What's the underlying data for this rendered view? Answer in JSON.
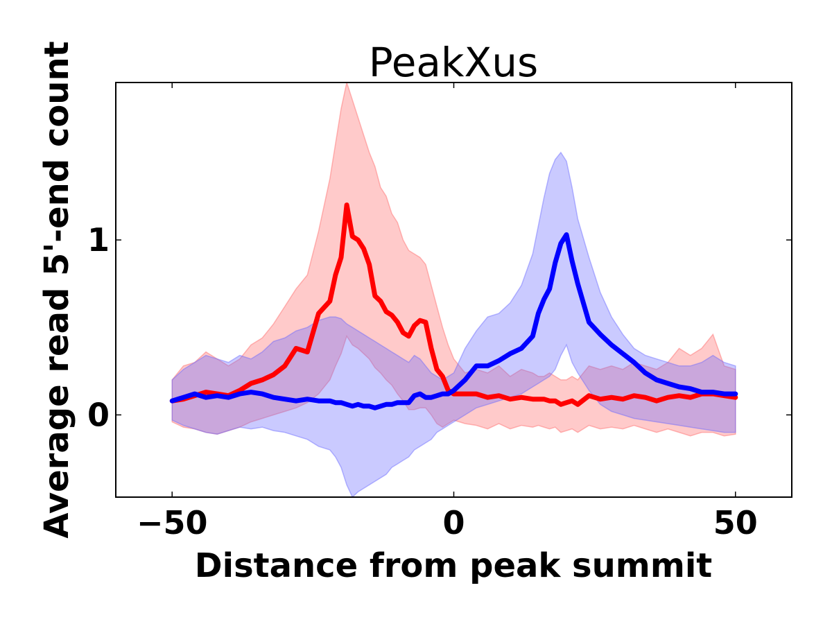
{
  "chart_data": {
    "type": "line",
    "title": "PeakXus",
    "xlabel": "Distance from peak summit",
    "ylabel": "Average read 5'-end count",
    "xlim": [
      -60,
      60
    ],
    "ylim": [
      -0.47,
      1.9
    ],
    "xticks": [
      -50,
      0,
      50
    ],
    "xtick_labels": [
      "−50",
      "0",
      "50"
    ],
    "yticks": [
      0,
      1
    ],
    "ytick_labels": [
      "0",
      "1"
    ],
    "grid": false,
    "legend": "none",
    "x": [
      -50,
      -48,
      -46,
      -44,
      -42,
      -40,
      -38,
      -36,
      -34,
      -32,
      -30,
      -28,
      -26,
      -24,
      -22,
      -21,
      -20,
      -19,
      -18,
      -17,
      -16,
      -15,
      -14,
      -13,
      -12,
      -11,
      -10,
      -9,
      -8,
      -7,
      -6,
      -5,
      -4,
      -3,
      -2,
      -1,
      0,
      2,
      4,
      6,
      8,
      10,
      12,
      14,
      15,
      16,
      17,
      18,
      19,
      20,
      21,
      22,
      24,
      26,
      28,
      30,
      32,
      34,
      36,
      38,
      40,
      42,
      44,
      46,
      48,
      50
    ],
    "series": [
      {
        "color": "#ff0000",
        "band_color": "#ff6666",
        "mean": [
          0.08,
          0.09,
          0.11,
          0.13,
          0.12,
          0.11,
          0.14,
          0.18,
          0.2,
          0.23,
          0.28,
          0.38,
          0.36,
          0.58,
          0.65,
          0.8,
          0.9,
          1.2,
          1.02,
          1.0,
          0.95,
          0.86,
          0.68,
          0.65,
          0.59,
          0.57,
          0.53,
          0.47,
          0.45,
          0.51,
          0.54,
          0.53,
          0.38,
          0.26,
          0.22,
          0.14,
          0.12,
          0.12,
          0.12,
          0.1,
          0.11,
          0.09,
          0.1,
          0.09,
          0.09,
          0.09,
          0.08,
          0.08,
          0.06,
          0.07,
          0.08,
          0.06,
          0.11,
          0.09,
          0.1,
          0.09,
          0.11,
          0.1,
          0.08,
          0.1,
          0.11,
          0.1,
          0.12,
          0.12,
          0.11,
          0.1
        ],
        "upper": [
          0.2,
          0.28,
          0.3,
          0.36,
          0.32,
          0.28,
          0.32,
          0.4,
          0.44,
          0.52,
          0.62,
          0.72,
          0.8,
          1.05,
          1.35,
          1.55,
          1.75,
          1.9,
          1.8,
          1.7,
          1.6,
          1.5,
          1.42,
          1.3,
          1.25,
          1.15,
          1.1,
          1.0,
          0.94,
          0.92,
          0.9,
          0.86,
          0.74,
          0.62,
          0.5,
          0.4,
          0.32,
          0.24,
          0.26,
          0.24,
          0.28,
          0.22,
          0.26,
          0.24,
          0.22,
          0.22,
          0.24,
          0.22,
          0.2,
          0.2,
          0.22,
          0.2,
          0.28,
          0.26,
          0.28,
          0.26,
          0.3,
          0.28,
          0.26,
          0.3,
          0.38,
          0.34,
          0.38,
          0.46,
          0.28,
          0.26
        ],
        "lower": [
          -0.04,
          -0.07,
          -0.08,
          -0.1,
          -0.11,
          -0.09,
          -0.07,
          -0.04,
          -0.02,
          0.0,
          0.02,
          0.04,
          0.07,
          0.12,
          0.2,
          0.28,
          0.35,
          0.45,
          0.4,
          0.38,
          0.35,
          0.32,
          0.27,
          0.24,
          0.2,
          0.17,
          0.12,
          0.08,
          0.03,
          0.03,
          0.04,
          0.04,
          0.0,
          -0.05,
          -0.07,
          -0.05,
          -0.03,
          -0.05,
          -0.06,
          -0.08,
          -0.05,
          -0.08,
          -0.06,
          -0.07,
          -0.06,
          -0.07,
          -0.08,
          -0.07,
          -0.1,
          -0.09,
          -0.08,
          -0.1,
          -0.06,
          -0.08,
          -0.07,
          -0.08,
          -0.06,
          -0.08,
          -0.1,
          -0.08,
          -0.1,
          -0.12,
          -0.1,
          -0.1,
          -0.12,
          -0.11
        ]
      },
      {
        "color": "#0000ff",
        "band_color": "#6666ff",
        "mean": [
          0.08,
          0.1,
          0.12,
          0.1,
          0.11,
          0.1,
          0.12,
          0.13,
          0.12,
          0.1,
          0.09,
          0.08,
          0.09,
          0.08,
          0.08,
          0.07,
          0.07,
          0.06,
          0.05,
          0.06,
          0.05,
          0.05,
          0.04,
          0.05,
          0.06,
          0.06,
          0.07,
          0.07,
          0.07,
          0.11,
          0.12,
          0.1,
          0.1,
          0.11,
          0.12,
          0.12,
          0.14,
          0.2,
          0.28,
          0.28,
          0.31,
          0.35,
          0.38,
          0.45,
          0.58,
          0.66,
          0.72,
          0.87,
          0.98,
          1.03,
          0.88,
          0.75,
          0.53,
          0.46,
          0.4,
          0.35,
          0.3,
          0.24,
          0.2,
          0.18,
          0.16,
          0.15,
          0.13,
          0.13,
          0.12,
          0.12
        ],
        "upper": [
          0.2,
          0.26,
          0.3,
          0.34,
          0.32,
          0.3,
          0.34,
          0.32,
          0.36,
          0.42,
          0.44,
          0.48,
          0.5,
          0.54,
          0.56,
          0.56,
          0.55,
          0.52,
          0.5,
          0.48,
          0.46,
          0.44,
          0.42,
          0.4,
          0.38,
          0.36,
          0.34,
          0.32,
          0.3,
          0.34,
          0.32,
          0.28,
          0.24,
          0.22,
          0.2,
          0.22,
          0.24,
          0.38,
          0.48,
          0.56,
          0.58,
          0.64,
          0.74,
          0.92,
          1.08,
          1.24,
          1.38,
          1.46,
          1.5,
          1.45,
          1.3,
          1.12,
          0.9,
          0.7,
          0.56,
          0.46,
          0.38,
          0.34,
          0.32,
          0.3,
          0.28,
          0.28,
          0.3,
          0.34,
          0.3,
          0.28
        ],
        "lower": [
          -0.03,
          -0.06,
          -0.08,
          -0.1,
          -0.11,
          -0.09,
          -0.07,
          -0.08,
          -0.07,
          -0.09,
          -0.1,
          -0.12,
          -0.14,
          -0.18,
          -0.2,
          -0.24,
          -0.3,
          -0.4,
          -0.47,
          -0.44,
          -0.42,
          -0.4,
          -0.38,
          -0.36,
          -0.34,
          -0.3,
          -0.28,
          -0.26,
          -0.24,
          -0.2,
          -0.18,
          -0.16,
          -0.14,
          -0.1,
          -0.08,
          -0.06,
          -0.04,
          0.0,
          0.04,
          0.06,
          0.08,
          0.1,
          0.12,
          0.16,
          0.18,
          0.2,
          0.22,
          0.26,
          0.34,
          0.4,
          0.3,
          0.24,
          0.14,
          0.06,
          0.02,
          0.0,
          -0.02,
          -0.03,
          -0.04,
          -0.05,
          -0.06,
          -0.07,
          -0.08,
          -0.09,
          -0.1,
          -0.1
        ]
      }
    ]
  }
}
